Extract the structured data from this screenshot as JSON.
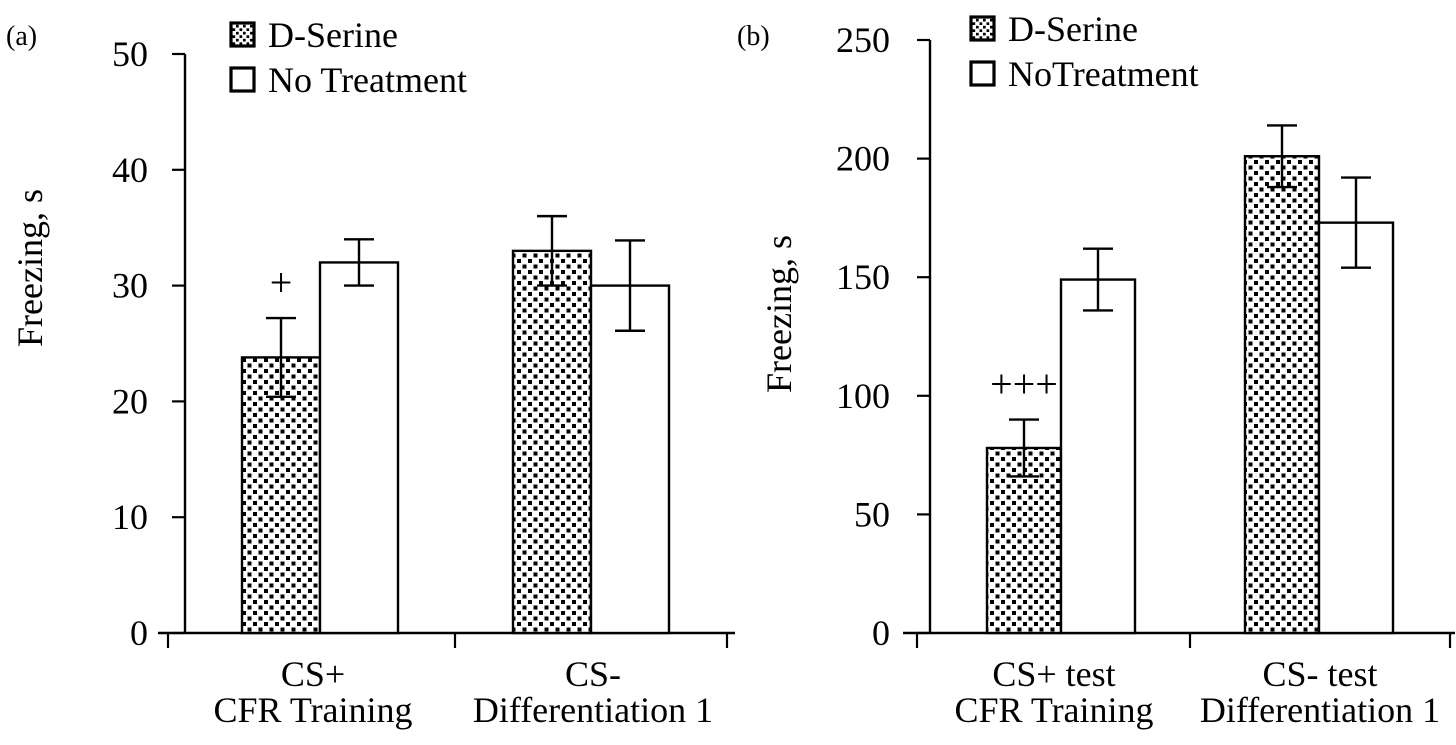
{
  "figure": {
    "background": "#ffffff",
    "ink": "#000000"
  },
  "chart_data": [
    {
      "panel_label": "(a)",
      "type": "bar",
      "title": "",
      "xlabel": "",
      "ylabel": "Freezing, s",
      "ylim": [
        0,
        50
      ],
      "yticks": [
        0,
        10,
        20,
        30,
        40,
        50
      ],
      "grid": false,
      "legend_position": "top-left-inside",
      "bar_fill_styles": [
        "diagonal-hatch",
        "white"
      ],
      "categories": [
        [
          "CS+",
          "CFR Training"
        ],
        [
          "CS-",
          "Differentiation 1"
        ]
      ],
      "series": [
        {
          "name": "D-Serine",
          "values": [
            23.8,
            33
          ],
          "errors": [
            3.4,
            3
          ]
        },
        {
          "name": "No Treatment",
          "values": [
            32,
            30
          ],
          "errors": [
            2,
            3.9
          ]
        }
      ],
      "annotations": [
        {
          "text": "+",
          "series": 0,
          "category": 0
        }
      ]
    },
    {
      "panel_label": "(b)",
      "type": "bar",
      "title": "",
      "xlabel": "",
      "ylabel": "Freezing, s",
      "ylim": [
        0,
        250
      ],
      "yticks": [
        0,
        50,
        100,
        150,
        200,
        250
      ],
      "grid": false,
      "legend_position": "top-left-inside",
      "bar_fill_styles": [
        "diagonal-hatch",
        "white"
      ],
      "categories": [
        [
          "CS+ test",
          "CFR Training"
        ],
        [
          "CS- test",
          "Differentiation 1"
        ]
      ],
      "series": [
        {
          "name": "D-Serine",
          "values": [
            78,
            201
          ],
          "errors": [
            12,
            13
          ]
        },
        {
          "name": "NoTreatment",
          "values": [
            149,
            173
          ],
          "errors": [
            13,
            19
          ]
        }
      ],
      "annotations": [
        {
          "text": "+++",
          "series": 0,
          "category": 0
        }
      ]
    }
  ]
}
